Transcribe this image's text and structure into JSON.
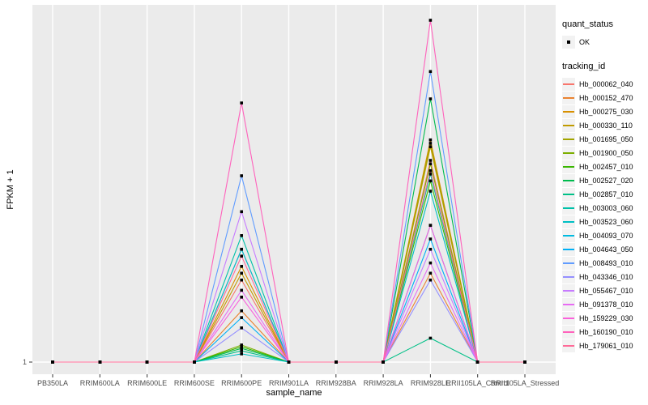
{
  "figure": {
    "panel_background": "#EBEBEB",
    "gridline_color": "#FFFFFF",
    "tick_color": "#333333",
    "tick_text_color": "#4D4D4D",
    "axis_title_color": "#000000",
    "legend_key_background": "#F2F2F2",
    "point_color": "#000000"
  },
  "chart_data": {
    "type": "line",
    "title": "",
    "xlabel": "sample_name",
    "ylabel": "FPKM + 1",
    "x_categories": [
      "PB350LA",
      "RRIM600LA",
      "RRIM600LE",
      "RRIM600SE",
      "RRIM600PE",
      "RRIM901LA",
      "RRIM928BA",
      "RRIM928LA",
      "RRIM928LE",
      "RRII105LA_Control",
      "RRII105LA_Stressed"
    ],
    "y_axis": {
      "tick_labels": [
        "1"
      ],
      "baseline_value": 1,
      "note_scale": "only the value 1 is labeled; peak heights below are relative (0 = FPKM+1 of 1, 1 = tallest peak)"
    },
    "legend_quant": {
      "title": "quant_status",
      "items": [
        {
          "label": "OK",
          "marker": "point"
        }
      ]
    },
    "legend_tracking": {
      "title": "tracking_id"
    },
    "point_shape": "square",
    "series": [
      {
        "name": "Hb_000062_040",
        "color": "#F8766D",
        "values_rel": [
          0,
          0,
          0,
          0,
          0.24,
          0,
          0,
          0,
          0.59,
          0,
          0
        ]
      },
      {
        "name": "Hb_000152_470",
        "color": "#EA8331",
        "values_rel": [
          0,
          0,
          0,
          0,
          0.15,
          0,
          0,
          0,
          0.26,
          0,
          0
        ]
      },
      {
        "name": "Hb_000275_030",
        "color": "#D89000",
        "values_rel": [
          0,
          0,
          0,
          0,
          0.28,
          0,
          0,
          0,
          0.65,
          0,
          0
        ]
      },
      {
        "name": "Hb_000330_110",
        "color": "#C09B00",
        "values_rel": [
          0,
          0,
          0,
          0,
          0.26,
          0,
          0,
          0,
          0.63,
          0,
          0
        ]
      },
      {
        "name": "Hb_001695_050",
        "color": "#A3A500",
        "values_rel": [
          0,
          0,
          0,
          0,
          0.33,
          0,
          0,
          0,
          0.64,
          0,
          0
        ]
      },
      {
        "name": "Hb_001900_050",
        "color": "#7CAE00",
        "values_rel": [
          0,
          0,
          0,
          0,
          0.05,
          0,
          0,
          0,
          0.58,
          0,
          0
        ]
      },
      {
        "name": "Hb_002457_010",
        "color": "#39B600",
        "values_rel": [
          0,
          0,
          0,
          0,
          0.045,
          0,
          0,
          0,
          0.53,
          0,
          0
        ]
      },
      {
        "name": "Hb_002527_020",
        "color": "#00BB4E",
        "values_rel": [
          0,
          0,
          0,
          0,
          0.04,
          0,
          0,
          0,
          0.77,
          0,
          0
        ]
      },
      {
        "name": "Hb_002857_010",
        "color": "#00C087",
        "values_rel": [
          0,
          0,
          0,
          0,
          0.033,
          0,
          0,
          0,
          0.07,
          0,
          0
        ]
      },
      {
        "name": "Hb_003003_060",
        "color": "#00C1A9",
        "values_rel": [
          0,
          0,
          0,
          0,
          0.37,
          0,
          0,
          0,
          0.55,
          0,
          0
        ]
      },
      {
        "name": "Hb_003523_060",
        "color": "#00BFC4",
        "values_rel": [
          0,
          0,
          0,
          0,
          0.024,
          0,
          0,
          0,
          0.5,
          0,
          0
        ]
      },
      {
        "name": "Hb_004093_070",
        "color": "#00BAE0",
        "values_rel": [
          0,
          0,
          0,
          0,
          0.33,
          0,
          0,
          0,
          0.4,
          0,
          0
        ]
      },
      {
        "name": "Hb_004643_050",
        "color": "#00B0F6",
        "values_rel": [
          0,
          0,
          0,
          0,
          0.13,
          0,
          0,
          0,
          0.36,
          0,
          0
        ]
      },
      {
        "name": "Hb_008493_010",
        "color": "#619CFF",
        "values_rel": [
          0,
          0,
          0,
          0,
          0.545,
          0,
          0,
          0,
          0.85,
          0,
          0
        ]
      },
      {
        "name": "Hb_043346_010",
        "color": "#9590FF",
        "values_rel": [
          0,
          0,
          0,
          0,
          0.1,
          0,
          0,
          0,
          0.24,
          0,
          0
        ]
      },
      {
        "name": "Hb_055467_010",
        "color": "#C77CFF",
        "values_rel": [
          0,
          0,
          0,
          0,
          0.44,
          0,
          0,
          0,
          0.33,
          0,
          0
        ]
      },
      {
        "name": "Hb_091378_010",
        "color": "#E76BF3",
        "values_rel": [
          0,
          0,
          0,
          0,
          0.21,
          0,
          0,
          0,
          0.29,
          0,
          0
        ]
      },
      {
        "name": "Hb_159229_030",
        "color": "#FA62DB",
        "values_rel": [
          0,
          0,
          0,
          0,
          0.19,
          0,
          0,
          0,
          0.4,
          0,
          0
        ]
      },
      {
        "name": "Hb_160190_010",
        "color": "#FF62BC",
        "values_rel": [
          0,
          0,
          0,
          0,
          0.758,
          0,
          0,
          0,
          1.0,
          0,
          0
        ]
      },
      {
        "name": "Hb_179061_010",
        "color": "#FF6A98",
        "values_rel": [
          0,
          0,
          0,
          0,
          0.31,
          0,
          0,
          0,
          0.56,
          0,
          0
        ]
      }
    ]
  }
}
